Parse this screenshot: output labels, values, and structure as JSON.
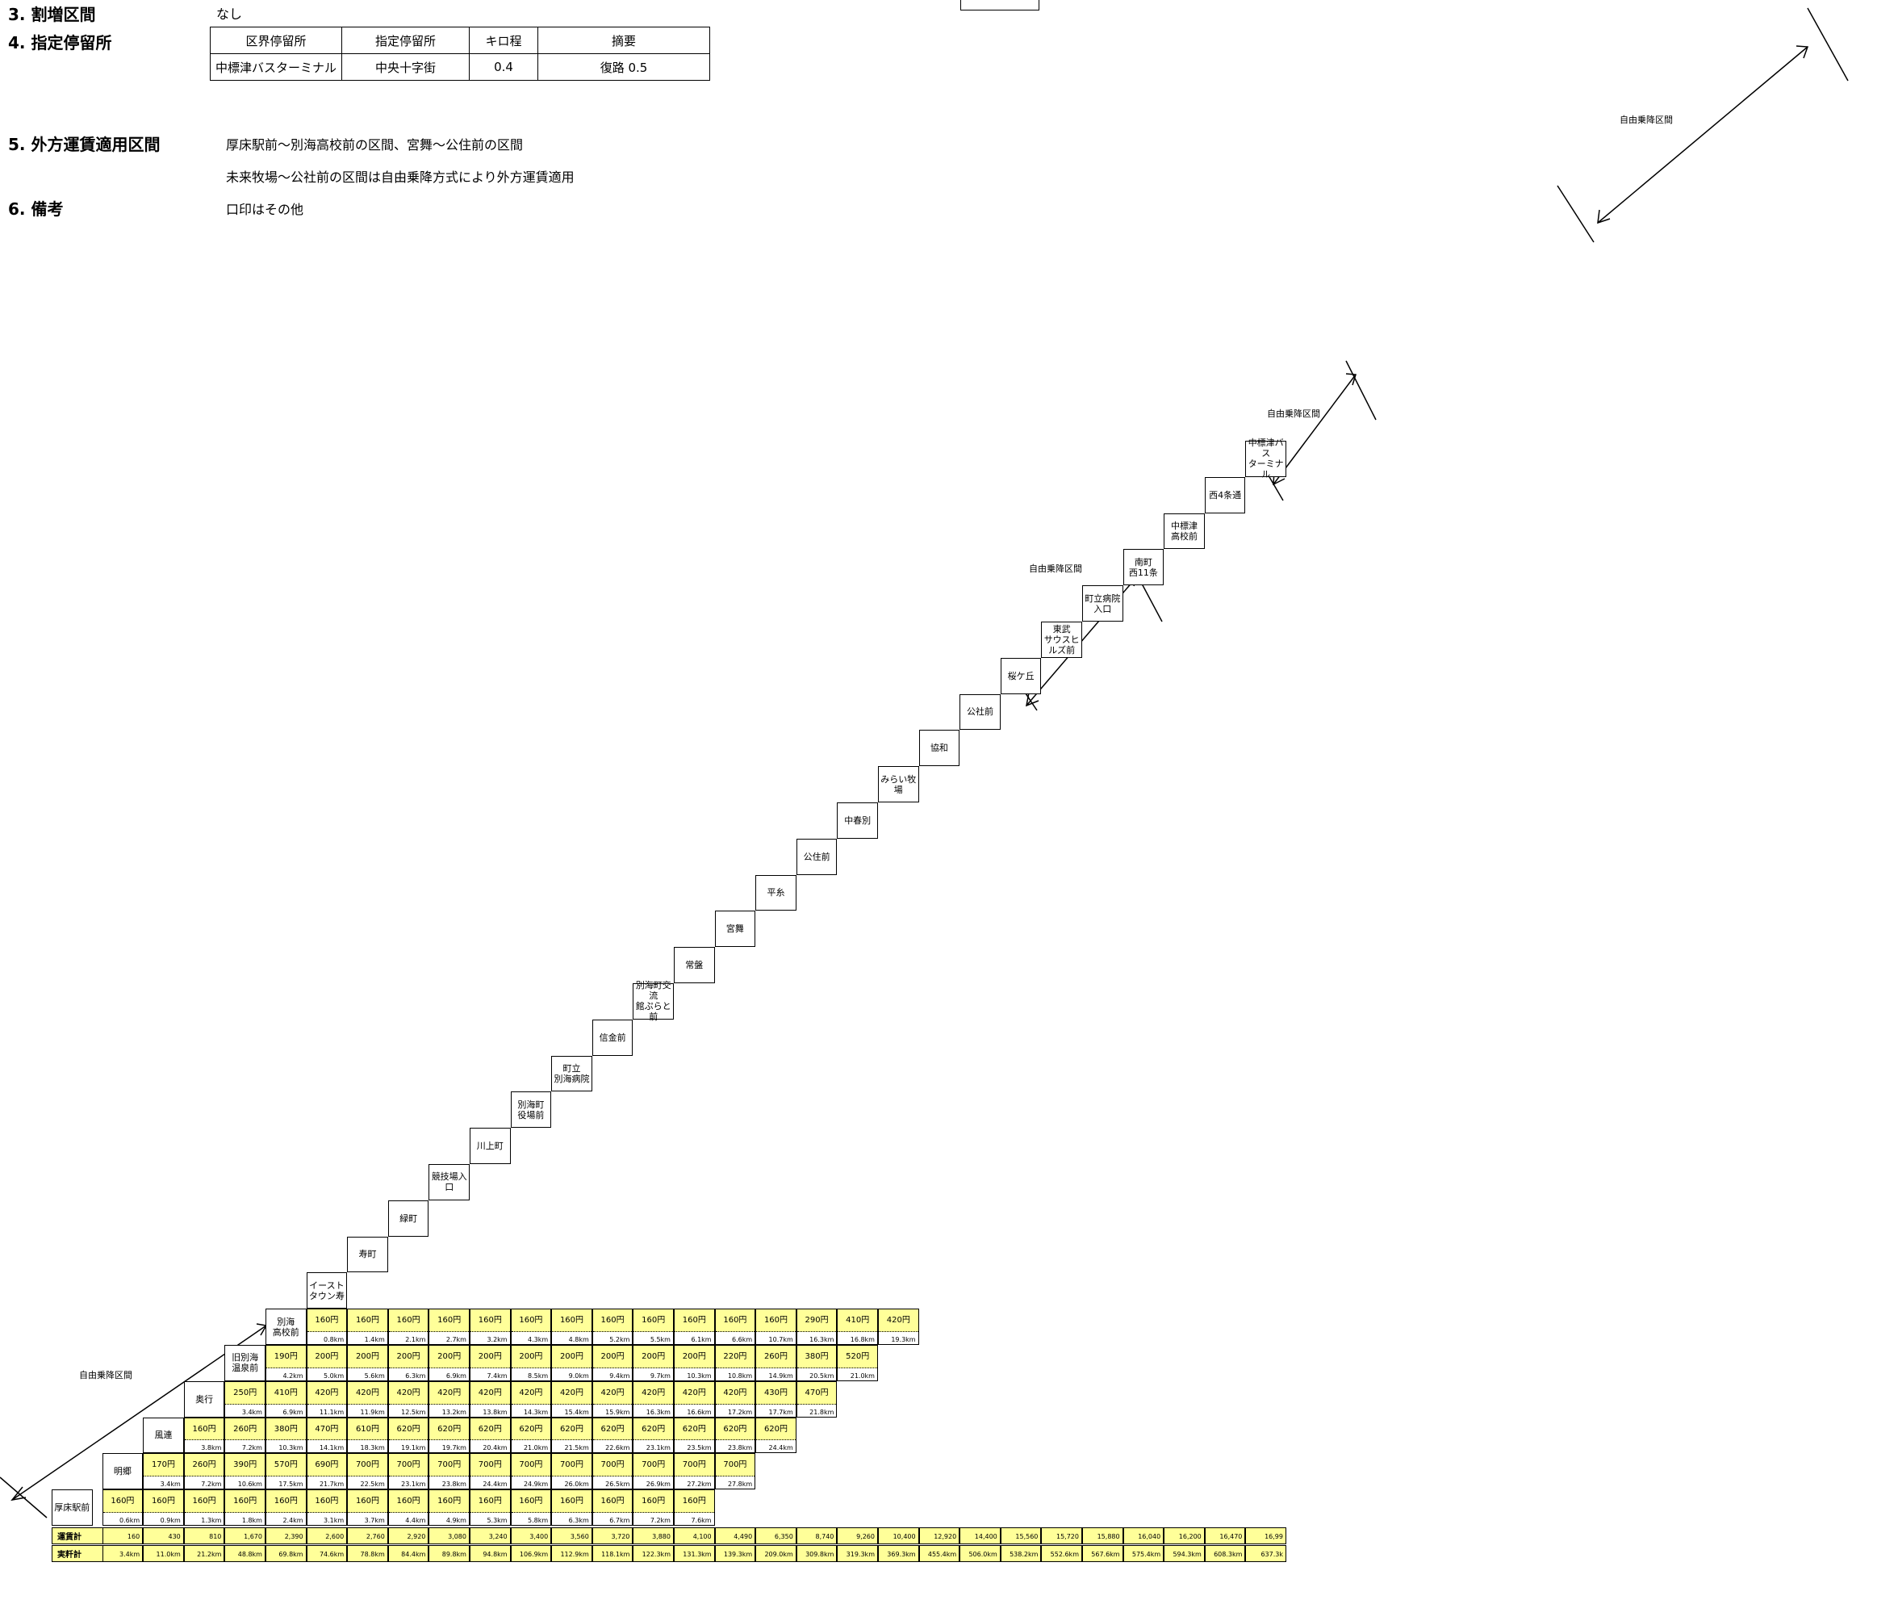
{
  "sections": {
    "s3": {
      "label": "3. 割増区間",
      "value": "なし"
    },
    "s4": {
      "label": "4. 指定停留所"
    },
    "s5": {
      "label": "5. 外方運賃適用区間",
      "line1": "厚床駅前～別海高校前の区間、宮舞～公住前の区間",
      "line2": "未来牧場～公社前の区間は自由乗降方式により外方運賃適用"
    },
    "s6": {
      "label": "6. 備考",
      "value": "口印はその他"
    }
  },
  "stops_table": {
    "headers": [
      "区界停留所",
      "指定停留所",
      "キロ程",
      "摘要"
    ],
    "row": [
      "中標津バスターミナル",
      "中央十字街",
      "0.4",
      "復路 0.5"
    ]
  },
  "free_section_label": "自由乗降区間",
  "stops": [
    "厚床駅前",
    "明郷",
    "風連",
    "奥行",
    "旧別海\n温泉前",
    "別海\n高校前",
    "イーストタウン寿",
    "寿町",
    "緑町",
    "競技場入口",
    "川上町",
    "別海町\n役場前",
    "町立\n別海病院",
    "信金前",
    "別海町交流\n館ぷらと前",
    "常盤",
    "宮舞",
    "平糸",
    "公住前",
    "中春別",
    "みらい牧場",
    "協和",
    "公社前",
    "桜ケ丘",
    "東武\nサウスヒルズ前",
    "町立病院\n入口",
    "南町\n西11条",
    "中標津\n高校前",
    "西4条通",
    "中標津バス\nターミナル"
  ],
  "rows": [
    {
      "fares": [
        "160円",
        "160円",
        "160円",
        "160円",
        "160円",
        "160円",
        "160円",
        "160円",
        "160円",
        "160円",
        "160円",
        "160円",
        "160円",
        "160円",
        "160円"
      ],
      "kms": [
        "0.6km",
        "0.9km",
        "1.3km",
        "1.8km",
        "2.4km",
        "3.1km",
        "3.7km",
        "4.4km",
        "4.9km",
        "5.3km",
        "5.8km",
        "6.3km",
        "6.7km",
        "7.2km",
        "7.6km"
      ]
    },
    {
      "fares": [
        "170円",
        "260円",
        "390円",
        "570円",
        "690円",
        "700円",
        "700円",
        "700円",
        "700円",
        "700円",
        "700円",
        "700円",
        "700円",
        "700円",
        "700円"
      ],
      "kms": [
        "3.4km",
        "7.2km",
        "10.6km",
        "17.5km",
        "21.7km",
        "22.5km",
        "23.1km",
        "23.8km",
        "24.4km",
        "24.9km",
        "26.0km",
        "26.5km",
        "26.9km",
        "27.2km",
        "27.8km"
      ]
    },
    {
      "fares": [
        "160円",
        "260円",
        "380円",
        "470円",
        "610円",
        "620円",
        "620円",
        "620円",
        "620円",
        "620円",
        "620円",
        "620円",
        "620円",
        "620円",
        "620円"
      ],
      "kms": [
        "3.8km",
        "7.2km",
        "10.3km",
        "14.1km",
        "18.3km",
        "19.1km",
        "19.7km",
        "20.4km",
        "21.0km",
        "21.5km",
        "22.6km",
        "23.1km",
        "23.5km",
        "23.8km",
        "24.4km"
      ]
    },
    {
      "fares": [
        "250円",
        "410円",
        "420円",
        "420円",
        "420円",
        "420円",
        "420円",
        "420円",
        "420円",
        "420円",
        "420円",
        "420円",
        "420円",
        "430円",
        "470円"
      ],
      "kms": [
        "3.4km",
        "6.9km",
        "11.1km",
        "11.9km",
        "12.5km",
        "13.2km",
        "13.8km",
        "14.3km",
        "15.4km",
        "15.9km",
        "16.3km",
        "16.6km",
        "17.2km",
        "17.7km",
        "21.8km"
      ]
    },
    {
      "fares": [
        "190円",
        "200円",
        "200円",
        "200円",
        "200円",
        "200円",
        "200円",
        "200円",
        "200円",
        "200円",
        "200円",
        "220円",
        "260円",
        "380円",
        "520円"
      ],
      "kms": [
        "4.2km",
        "5.0km",
        "5.6km",
        "6.3km",
        "6.9km",
        "7.4km",
        "8.5km",
        "9.0km",
        "9.4km",
        "9.7km",
        "10.3km",
        "10.8km",
        "14.9km",
        "20.5km",
        "21.0km"
      ]
    },
    {
      "fares": [
        "160円",
        "160円",
        "160円",
        "160円",
        "160円",
        "160円",
        "160円",
        "160円",
        "160円",
        "160円",
        "160円",
        "160円",
        "290円",
        "410円",
        "420円"
      ],
      "kms": [
        "0.8km",
        "1.4km",
        "2.1km",
        "2.7km",
        "3.2km",
        "4.3km",
        "4.8km",
        "5.2km",
        "5.5km",
        "6.1km",
        "6.6km",
        "10.7km",
        "16.3km",
        "16.8km",
        "19.3km"
      ]
    }
  ],
  "footer": {
    "fare_total_label": "運賃計",
    "distance_total_label": "実粁計",
    "fare_totals": [
      "160",
      "430",
      "810",
      "1,670",
      "2,390",
      "2,600",
      "2,760",
      "2,920",
      "3,080",
      "3,240",
      "3,400",
      "3,560",
      "3,720",
      "3,880",
      "4,100",
      "4,490",
      "6,350",
      "8,740",
      "9,260",
      "10,400",
      "12,920",
      "14,400",
      "15,560",
      "15,720",
      "15,880",
      "16,040",
      "16,200",
      "16,470",
      "16,99"
    ],
    "distance_totals": [
      "3.4km",
      "11.0km",
      "21.2km",
      "48.8km",
      "69.8km",
      "74.6km",
      "78.8km",
      "84.4km",
      "89.8km",
      "94.8km",
      "106.9km",
      "112.9km",
      "118.1km",
      "122.3km",
      "131.3km",
      "139.3km",
      "209.0km",
      "309.8km",
      "319.3km",
      "369.3km",
      "455.4km",
      "506.0km",
      "538.2km",
      "552.6km",
      "567.6km",
      "575.4km",
      "594.3km",
      "608.3km",
      "637.3k"
    ]
  },
  "colors": {
    "fare_bg": "#ffff99",
    "border": "#000000"
  }
}
